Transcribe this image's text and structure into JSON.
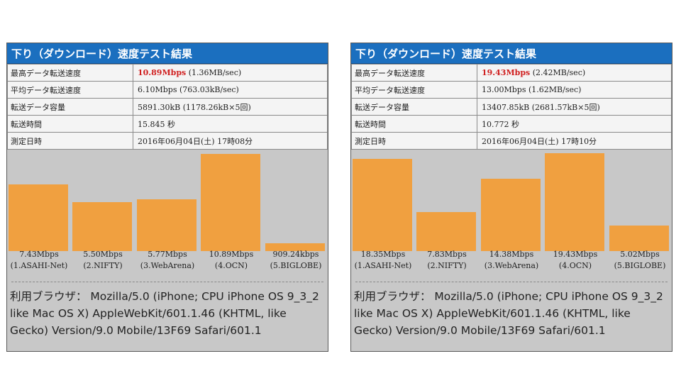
{
  "panels": [
    {
      "title": "下り（ダウンロード）速度テスト結果",
      "rows": [
        {
          "label": "最高データ転送速度",
          "value_highlight": "10.89Mbps",
          "value": " (1.36MB/sec)"
        },
        {
          "label": "平均データ転送速度",
          "value_highlight": "",
          "value": "6.10Mbps (763.03kB/sec)"
        },
        {
          "label": "転送データ容量",
          "value_highlight": "",
          "value": "5891.30kB (1178.26kB×5回)"
        },
        {
          "label": "転送時間",
          "value_highlight": "",
          "value": "15.845 秒"
        },
        {
          "label": "測定日時",
          "value_highlight": "",
          "value": "2016年06月04日(土) 17時08分"
        }
      ],
      "chart_data": {
        "type": "bar",
        "categories": [
          "(1.ASAHI-Net)",
          "(2.NIFTY)",
          "(3.WebArena)",
          "(4.OCN)",
          "(5.BIGLOBE)"
        ],
        "values": [
          7.43,
          5.5,
          5.77,
          10.89,
          0.90924
        ],
        "value_labels": [
          "7.43Mbps",
          "5.50Mbps",
          "5.77Mbps",
          "10.89Mbps",
          "909.24kbps"
        ],
        "units": "Mbps",
        "ylim": [
          0,
          11.2
        ],
        "color": "#f0a040"
      },
      "ua_lines": [
        "利用ブラウザ： Mozilla/5.0 (iPhone; CPU iPhone OS 9_3_2",
        "like Mac OS X) AppleWebKit/601.1.46 (KHTML, like",
        "Gecko) Version/9.0 Mobile/13F69 Safari/601.1"
      ]
    },
    {
      "title": "下り（ダウンロード）速度テスト結果",
      "rows": [
        {
          "label": "最高データ転送速度",
          "value_highlight": "19.43Mbps",
          "value": " (2.42MB/sec)"
        },
        {
          "label": "平均データ転送速度",
          "value_highlight": "",
          "value": "13.00Mbps (1.62MB/sec)"
        },
        {
          "label": "転送データ容量",
          "value_highlight": "",
          "value": "13407.85kB (2681.57kB×5回)"
        },
        {
          "label": "転送時間",
          "value_highlight": "",
          "value": "10.772 秒"
        },
        {
          "label": "測定日時",
          "value_highlight": "",
          "value": "2016年06月04日(土) 17時10分"
        }
      ],
      "chart_data": {
        "type": "bar",
        "categories": [
          "(1.ASAHI-Net)",
          "(2.NIFTY)",
          "(3.WebArena)",
          "(4.OCN)",
          "(5.BIGLOBE)"
        ],
        "values": [
          18.35,
          7.83,
          14.38,
          19.43,
          5.02
        ],
        "value_labels": [
          "18.35Mbps",
          "7.83Mbps",
          "14.38Mbps",
          "19.43Mbps",
          "5.02Mbps"
        ],
        "units": "Mbps",
        "ylim": [
          0,
          19.9
        ],
        "color": "#f0a040"
      },
      "ua_lines": [
        "利用ブラウザ： Mozilla/5.0 (iPhone; CPU iPhone OS 9_3_2",
        "like Mac OS X) AppleWebKit/601.1.46 (KHTML, like",
        "Gecko) Version/9.0 Mobile/13F69 Safari/601.1"
      ]
    }
  ]
}
